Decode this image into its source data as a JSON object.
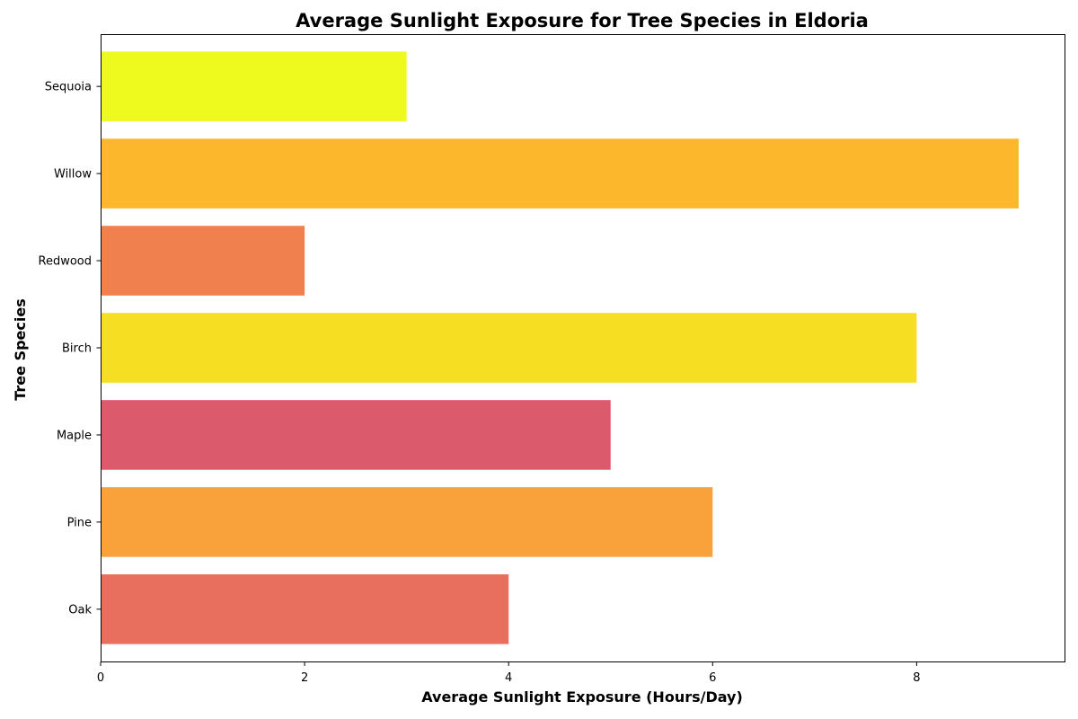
{
  "chart_data": {
    "type": "bar",
    "orientation": "horizontal",
    "title": "Average Sunlight Exposure for Tree Species in Eldoria",
    "xlabel": "Average Sunlight Exposure (Hours/Day)",
    "ylabel": "Tree Species",
    "categories": [
      "Oak",
      "Pine",
      "Maple",
      "Birch",
      "Redwood",
      "Willow",
      "Sequoia"
    ],
    "values": [
      4,
      6,
      5,
      8,
      2,
      9,
      3
    ],
    "colors": [
      "#e86e5e",
      "#f9a13a",
      "#db5a6b",
      "#f6de23",
      "#f0814f",
      "#fcb72d",
      "#eefa1e"
    ],
    "xlim": [
      0,
      9.45
    ],
    "xticks": [
      0,
      2,
      4,
      6,
      8
    ],
    "xtick_labels": [
      "0",
      "2",
      "4",
      "6",
      "8"
    ],
    "grid": false,
    "legend": "none"
  }
}
